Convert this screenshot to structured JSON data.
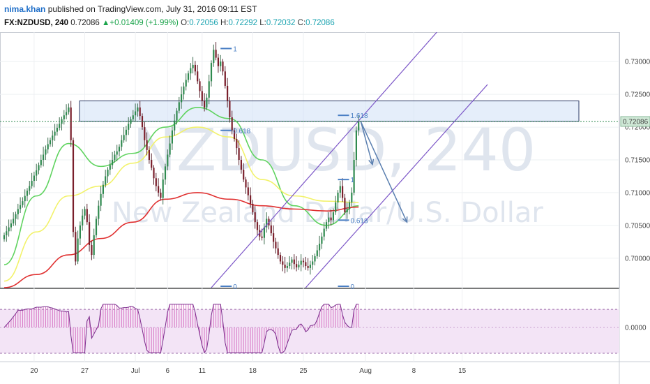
{
  "header": {
    "author": "nima.khan",
    "published": "published on TradingView.com, July 31, 2016 09:11 EST",
    "symbol": "FX:NZDUSD, 240",
    "last": "0.72086",
    "change_arrow": "▲",
    "change": "+0.01409 (+1.99%)",
    "o_label": "O:",
    "o": "0.72056",
    "h_label": "H:",
    "h": "0.72292",
    "l_label": "L:",
    "l": "0.72032",
    "c_label": "C:",
    "c": "0.72086"
  },
  "watermark": {
    "symbol": "NZDUSD, 240",
    "name": "New Zealand Dollar/U.S. Dollar"
  },
  "colors": {
    "up": "#2f8a4f",
    "down": "#7a1f2b",
    "ma_fast": "#5fd35f",
    "ma_mid": "#f2f26a",
    "ma_slow": "#e03030",
    "channel": "#7b55c7",
    "zone": "#cfe0f5",
    "fib": "#4a7fc4",
    "oscillator": "#c23aa8",
    "last_price_bg": "#cfe8d6"
  },
  "chart_data": {
    "type": "candlestick",
    "title": "FX:NZDUSD, 240",
    "y_range": [
      0.6955,
      0.7345
    ],
    "y_ticks": [
      "0.73000",
      "0.72500",
      "0.72000",
      "0.71500",
      "0.71000",
      "0.70500",
      "0.70000"
    ],
    "y_tick_values": [
      0.73,
      0.725,
      0.72,
      0.715,
      0.71,
      0.705,
      0.7
    ],
    "last_price_label": "0.72086",
    "last_price": 0.72086,
    "x_ticks": [
      "20",
      "27",
      "Jul",
      "6",
      "11",
      "18",
      "25",
      "Aug",
      "8",
      "15"
    ],
    "x_tick_index": [
      13,
      35,
      57,
      71,
      86,
      108,
      130,
      157,
      178,
      199
    ],
    "closes": [
      0.7035,
      0.7041,
      0.7047,
      0.7053,
      0.706,
      0.7067,
      0.7075,
      0.7081,
      0.7087,
      0.7095,
      0.7103,
      0.711,
      0.7118,
      0.7126,
      0.7134,
      0.7142,
      0.715,
      0.7158,
      0.7166,
      0.7174,
      0.718,
      0.7187,
      0.7193,
      0.7199,
      0.7205,
      0.7212,
      0.7218,
      0.7223,
      0.723,
      0.718,
      0.704,
      0.6995,
      0.703,
      0.705,
      0.7065,
      0.7075,
      0.7055,
      0.702,
      0.7005,
      0.7035,
      0.706,
      0.708,
      0.7098,
      0.7112,
      0.7125,
      0.7135,
      0.7142,
      0.715,
      0.7158,
      0.7163,
      0.717,
      0.718,
      0.7188,
      0.7196,
      0.7205,
      0.7212,
      0.7218,
      0.7224,
      0.723,
      0.7217,
      0.72,
      0.718,
      0.7165,
      0.715,
      0.7138,
      0.7122,
      0.711,
      0.71,
      0.7092,
      0.712,
      0.714,
      0.7158,
      0.7175,
      0.7195,
      0.721,
      0.7225,
      0.7238,
      0.725,
      0.7262,
      0.7272,
      0.7282,
      0.729,
      0.7295,
      0.7285,
      0.727,
      0.7255,
      0.724,
      0.723,
      0.7245,
      0.727,
      0.7298,
      0.7318,
      0.7306,
      0.7293,
      0.73,
      0.7285,
      0.7263,
      0.724,
      0.7215,
      0.7195,
      0.7182,
      0.7168,
      0.715,
      0.7135,
      0.712,
      0.7108,
      0.7096,
      0.7083,
      0.707,
      0.7055,
      0.7043,
      0.7033,
      0.7031,
      0.7047,
      0.706,
      0.705,
      0.7038,
      0.7025,
      0.7015,
      0.7005,
      0.6995,
      0.699,
      0.6985,
      0.6988,
      0.6993,
      0.6998,
      0.6991,
      0.6986,
      0.699,
      0.6996,
      0.6994,
      0.6988,
      0.6985,
      0.699,
      0.6995,
      0.7003,
      0.7012,
      0.7022,
      0.7033,
      0.7045,
      0.7055,
      0.7062,
      0.7058,
      0.707,
      0.7085,
      0.71,
      0.711,
      0.7092,
      0.707,
      0.7075,
      0.7085,
      0.71,
      0.715,
      0.7195,
      0.7208
    ],
    "moving_averages": [
      {
        "color": "green",
        "values": [
          0.699,
          0.7095,
          0.7175,
          0.714,
          0.716,
          0.72,
          0.723,
          0.7213,
          0.715,
          0.708,
          0.705,
          0.708
        ]
      },
      {
        "color": "yellow",
        "values": [
          0.6965,
          0.704,
          0.7095,
          0.711,
          0.7145,
          0.7185,
          0.72,
          0.7185,
          0.712,
          0.7095,
          0.7087,
          0.7085
        ]
      },
      {
        "color": "red",
        "values": [
          0.6955,
          0.6975,
          0.7005,
          0.703,
          0.7055,
          0.709,
          0.71,
          0.709,
          0.708,
          0.7075,
          0.7072,
          0.7078
        ]
      }
    ],
    "resistance_zone": [
      0.7209,
      0.724
    ],
    "channel": [
      {
        "from": [
          90,
          0.6955
        ],
        "to": [
          188,
          0.7345
        ]
      },
      {
        "from": [
          131,
          0.6955
        ],
        "to": [
          210,
          0.7265
        ]
      }
    ],
    "fib_labels": [
      "1",
      "0.618",
      "0",
      "1.618",
      "1",
      "0.618",
      "0"
    ],
    "fib_levels": [
      {
        "label": "1",
        "value": 0.732,
        "x": 94
      },
      {
        "label": "0.618",
        "value": 0.7195,
        "x": 94
      },
      {
        "label": "0",
        "value": 0.6955,
        "x": 94
      },
      {
        "label": "1.618",
        "value": 0.7218,
        "x": 145
      },
      {
        "label": "1",
        "value": 0.712,
        "x": 145
      },
      {
        "label": "0.618",
        "value": 0.7058,
        "x": 145
      },
      {
        "label": "0",
        "value": 0.6955,
        "x": 145
      }
    ],
    "projection_arrows": [
      {
        "from": [
          155,
          0.7208
        ],
        "to": [
          160,
          0.7143
        ]
      },
      {
        "from": [
          155,
          0.7208
        ],
        "to": [
          175,
          0.7055
        ]
      }
    ],
    "oscillator": {
      "zero_label": "0.0000",
      "range": [
        -1,
        1
      ],
      "upper_band": 0.7,
      "lower_band": -1.0
    },
    "grid": true
  }
}
